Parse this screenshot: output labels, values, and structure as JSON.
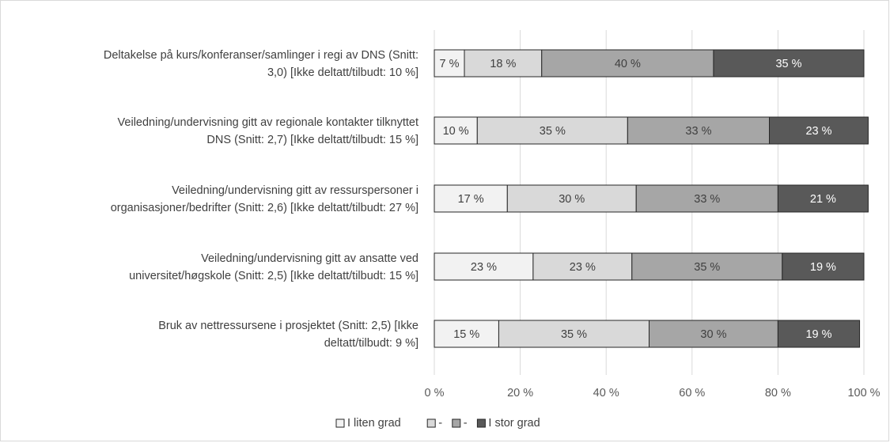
{
  "chart_data": {
    "type": "bar",
    "orientation": "horizontal",
    "stacked": "100%",
    "categories": [
      [
        "Deltakelse på kurs/konferanser/samlinger i regi av DNS (Snitt:",
        "3,0) [Ikke deltatt/tilbudt: 10 %]"
      ],
      [
        "Veiledning/undervisning gitt av regionale kontakter tilknyttet",
        "DNS (Snitt: 2,7) [Ikke deltatt/tilbudt: 15 %]"
      ],
      [
        "Veiledning/undervisning gitt av ressurspersoner i",
        "organisasjoner/bedrifter (Snitt: 2,6) [Ikke deltatt/tilbudt: 27 %]"
      ],
      [
        "Veiledning/undervisning gitt av ansatte ved",
        "universitet/høgskole (Snitt: 2,5) [Ikke deltatt/tilbudt: 15 %]"
      ],
      [
        "Bruk av nettressursene i prosjektet (Snitt: 2,5) [Ikke",
        "deltatt/tilbudt: 9 %]"
      ]
    ],
    "series": [
      {
        "name": "I liten grad",
        "color": "#f2f2f2",
        "label_color": "#404040",
        "values": [
          7,
          10,
          17,
          23,
          15
        ],
        "labels": [
          "7 %",
          "10 %",
          "17 %",
          "23 %",
          "15 %"
        ]
      },
      {
        "name": "-",
        "color": "#d9d9d9",
        "label_color": "#404040",
        "values": [
          18,
          35,
          30,
          23,
          35
        ],
        "labels": [
          "18 %",
          "35 %",
          "30 %",
          "23 %",
          "35 %"
        ]
      },
      {
        "name": "-",
        "color": "#a6a6a6",
        "label_color": "#404040",
        "values": [
          40,
          33,
          33,
          35,
          30
        ],
        "labels": [
          "40 %",
          "33 %",
          "33 %",
          "35 %",
          "30 %"
        ]
      },
      {
        "name": "I stor grad",
        "color": "#595959",
        "label_color": "#ffffff",
        "values": [
          35,
          23,
          21,
          19,
          19
        ],
        "labels": [
          "35 %",
          "23 %",
          "21 %",
          "19 %",
          "19 %"
        ]
      }
    ],
    "xlim": [
      0,
      100
    ],
    "xticks": [
      "0 %",
      "20 %",
      "40 %",
      "60 %",
      "80 %",
      "100 %"
    ],
    "grid": "vertical",
    "legend": "bottom",
    "border_color": "#262626",
    "grid_color": "#d9d9d9"
  }
}
